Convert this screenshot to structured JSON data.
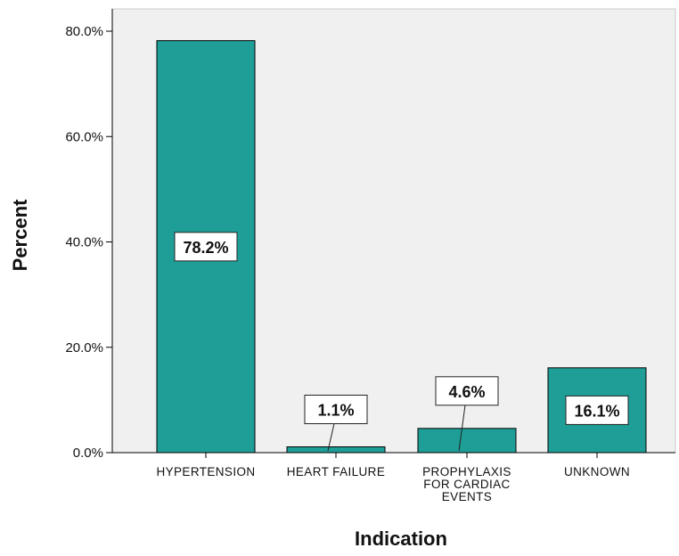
{
  "chart_data": {
    "type": "bar",
    "xlabel": "Indication",
    "ylabel": "Percent",
    "categories": [
      [
        "HYPERTENSION"
      ],
      [
        "HEART FAILURE"
      ],
      [
        "PROPHYLAXIS",
        "FOR CARDIAC",
        "EVENTS"
      ],
      [
        "UNKNOWN"
      ]
    ],
    "values": [
      78.2,
      1.1,
      4.6,
      16.1
    ],
    "data_labels": [
      "78.2%",
      "1.1%",
      "4.6%",
      "16.1%"
    ],
    "ylim": [
      0,
      80
    ],
    "yticks": [
      0,
      20,
      40,
      60,
      80
    ],
    "ytick_labels": [
      "0.0%",
      "20.0%",
      "40.0%",
      "60.0%",
      "80.0%"
    ],
    "grid": false,
    "colors": {
      "bar": "#1f9e98",
      "plot_background": "#f0f0f0",
      "axis": "#000000"
    }
  }
}
